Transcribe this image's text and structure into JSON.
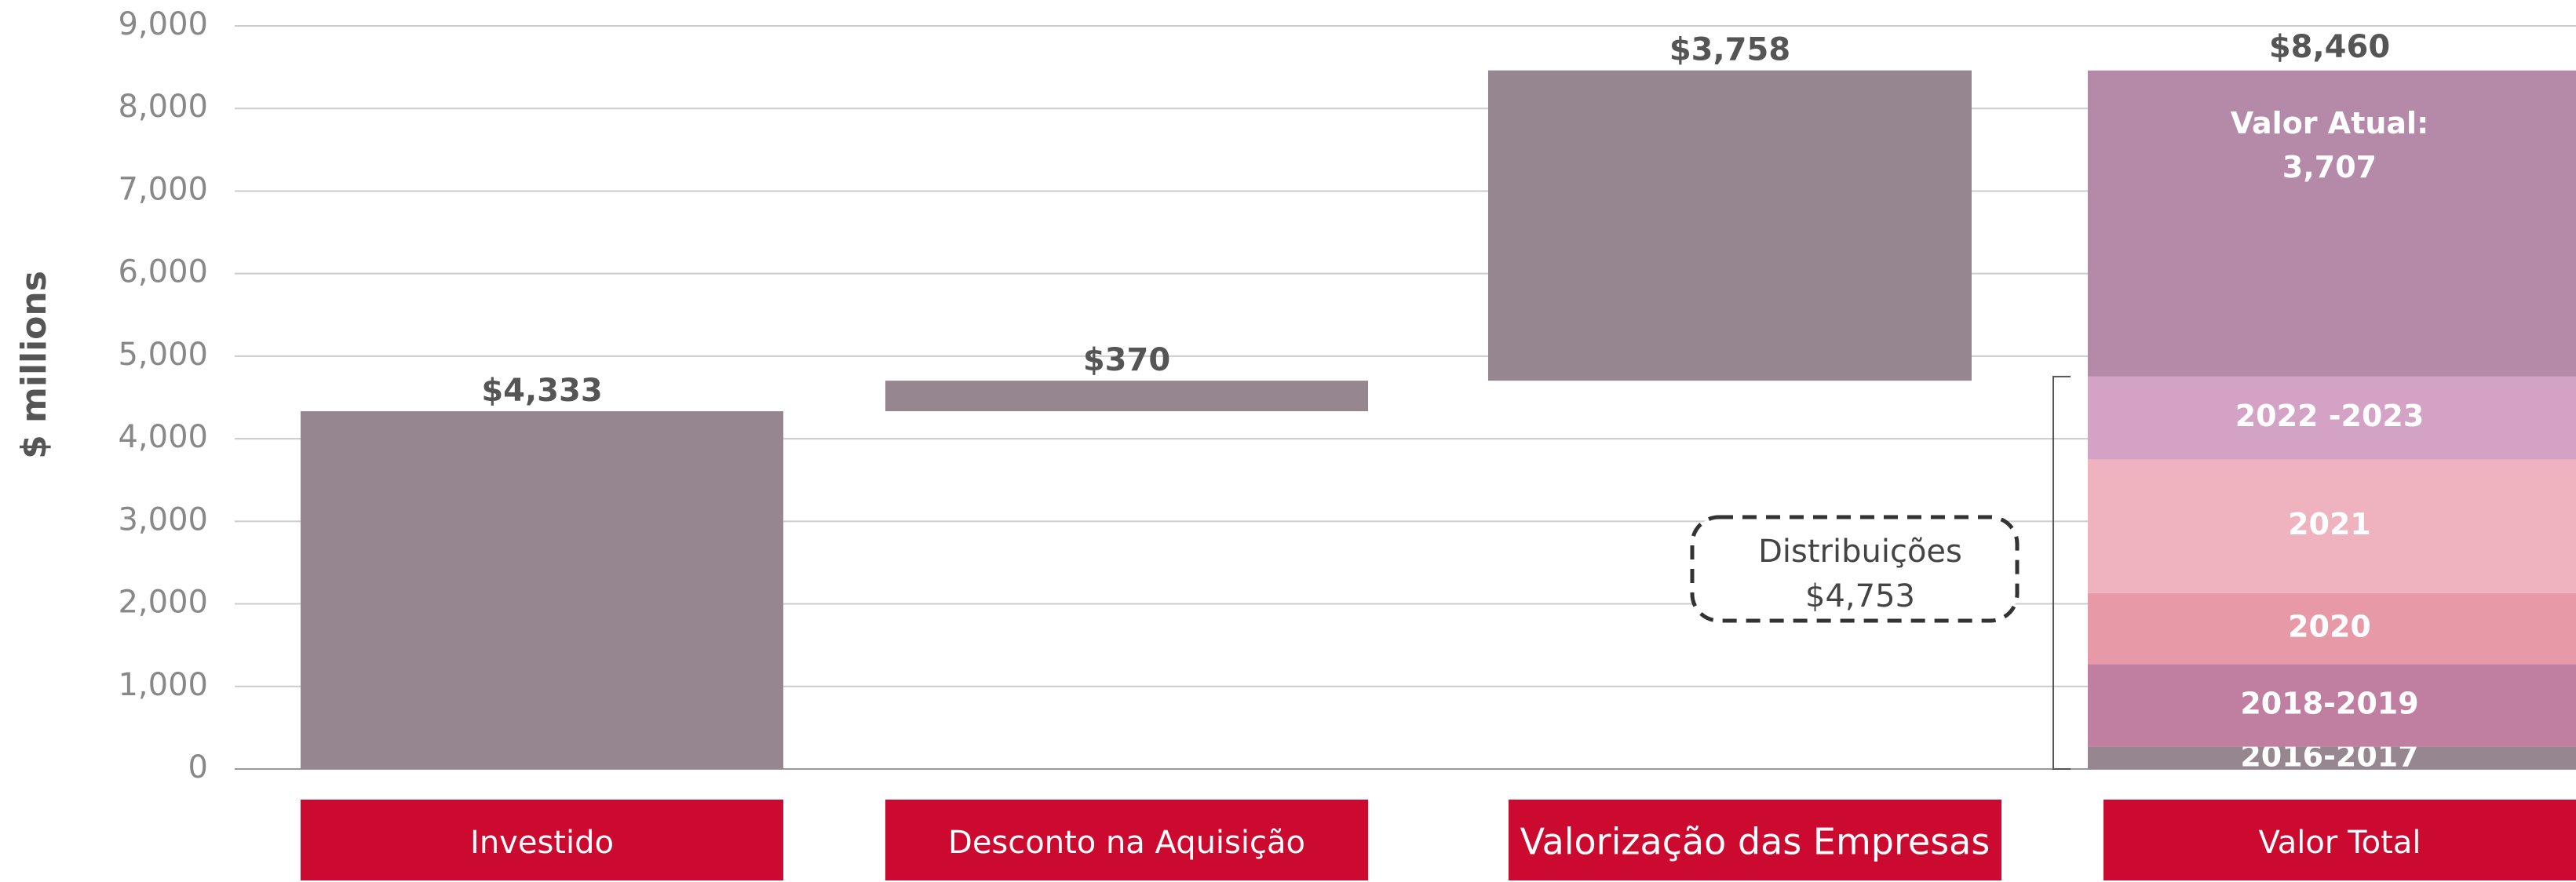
{
  "chart_data": {
    "type": "waterfall",
    "ylabel": "$ millions",
    "categories": [
      "Investido",
      "Desconto na Aquisição",
      "Valorização das Empresas",
      "Valor Total"
    ],
    "values": [
      4333,
      370,
      3758,
      8460
    ],
    "value_labels": [
      "$4,333",
      "$370",
      "$3,758",
      "$8,460"
    ],
    "color": "#958690",
    "category_box_color": "#cc0a2f",
    "total_segments": [
      {
        "name": "2016-2017",
        "value": 270,
        "color": "#958690"
      },
      {
        "name": "2018-2019",
        "value": 1000,
        "color": "#c07fa0"
      },
      {
        "name": "2020",
        "value": 860,
        "color": "#e899a8"
      },
      {
        "name": "2021",
        "value": 1620,
        "color": "#efb3bf"
      },
      {
        "name": "2022 -2023",
        "value": 1003,
        "color": "#d4a2c4"
      },
      {
        "name": "Valor Atual:",
        "value": 3707,
        "value_label": "3,707",
        "color": "#b48aa8"
      }
    ],
    "annotation": {
      "text": "Distribuições",
      "value": 4753,
      "label": "$4,753"
    },
    "ylim": [
      0,
      9000
    ],
    "yticks": [
      0,
      {
        "value": 1000,
        "label": "1,000"
      },
      {
        "value": 2000,
        "label": "2,000"
      },
      {
        "value": 3000,
        "label": "3,000"
      },
      {
        "value": 4000,
        "label": "4,000"
      },
      {
        "value": 5000,
        "label": "5,000"
      },
      {
        "value": 6000,
        "label": "6,000"
      },
      {
        "value": 7000,
        "label": "7,000"
      },
      {
        "value": 8000,
        "label": "8,000"
      },
      {
        "value": 9000,
        "label": "9,000"
      }
    ],
    "grid": true
  }
}
